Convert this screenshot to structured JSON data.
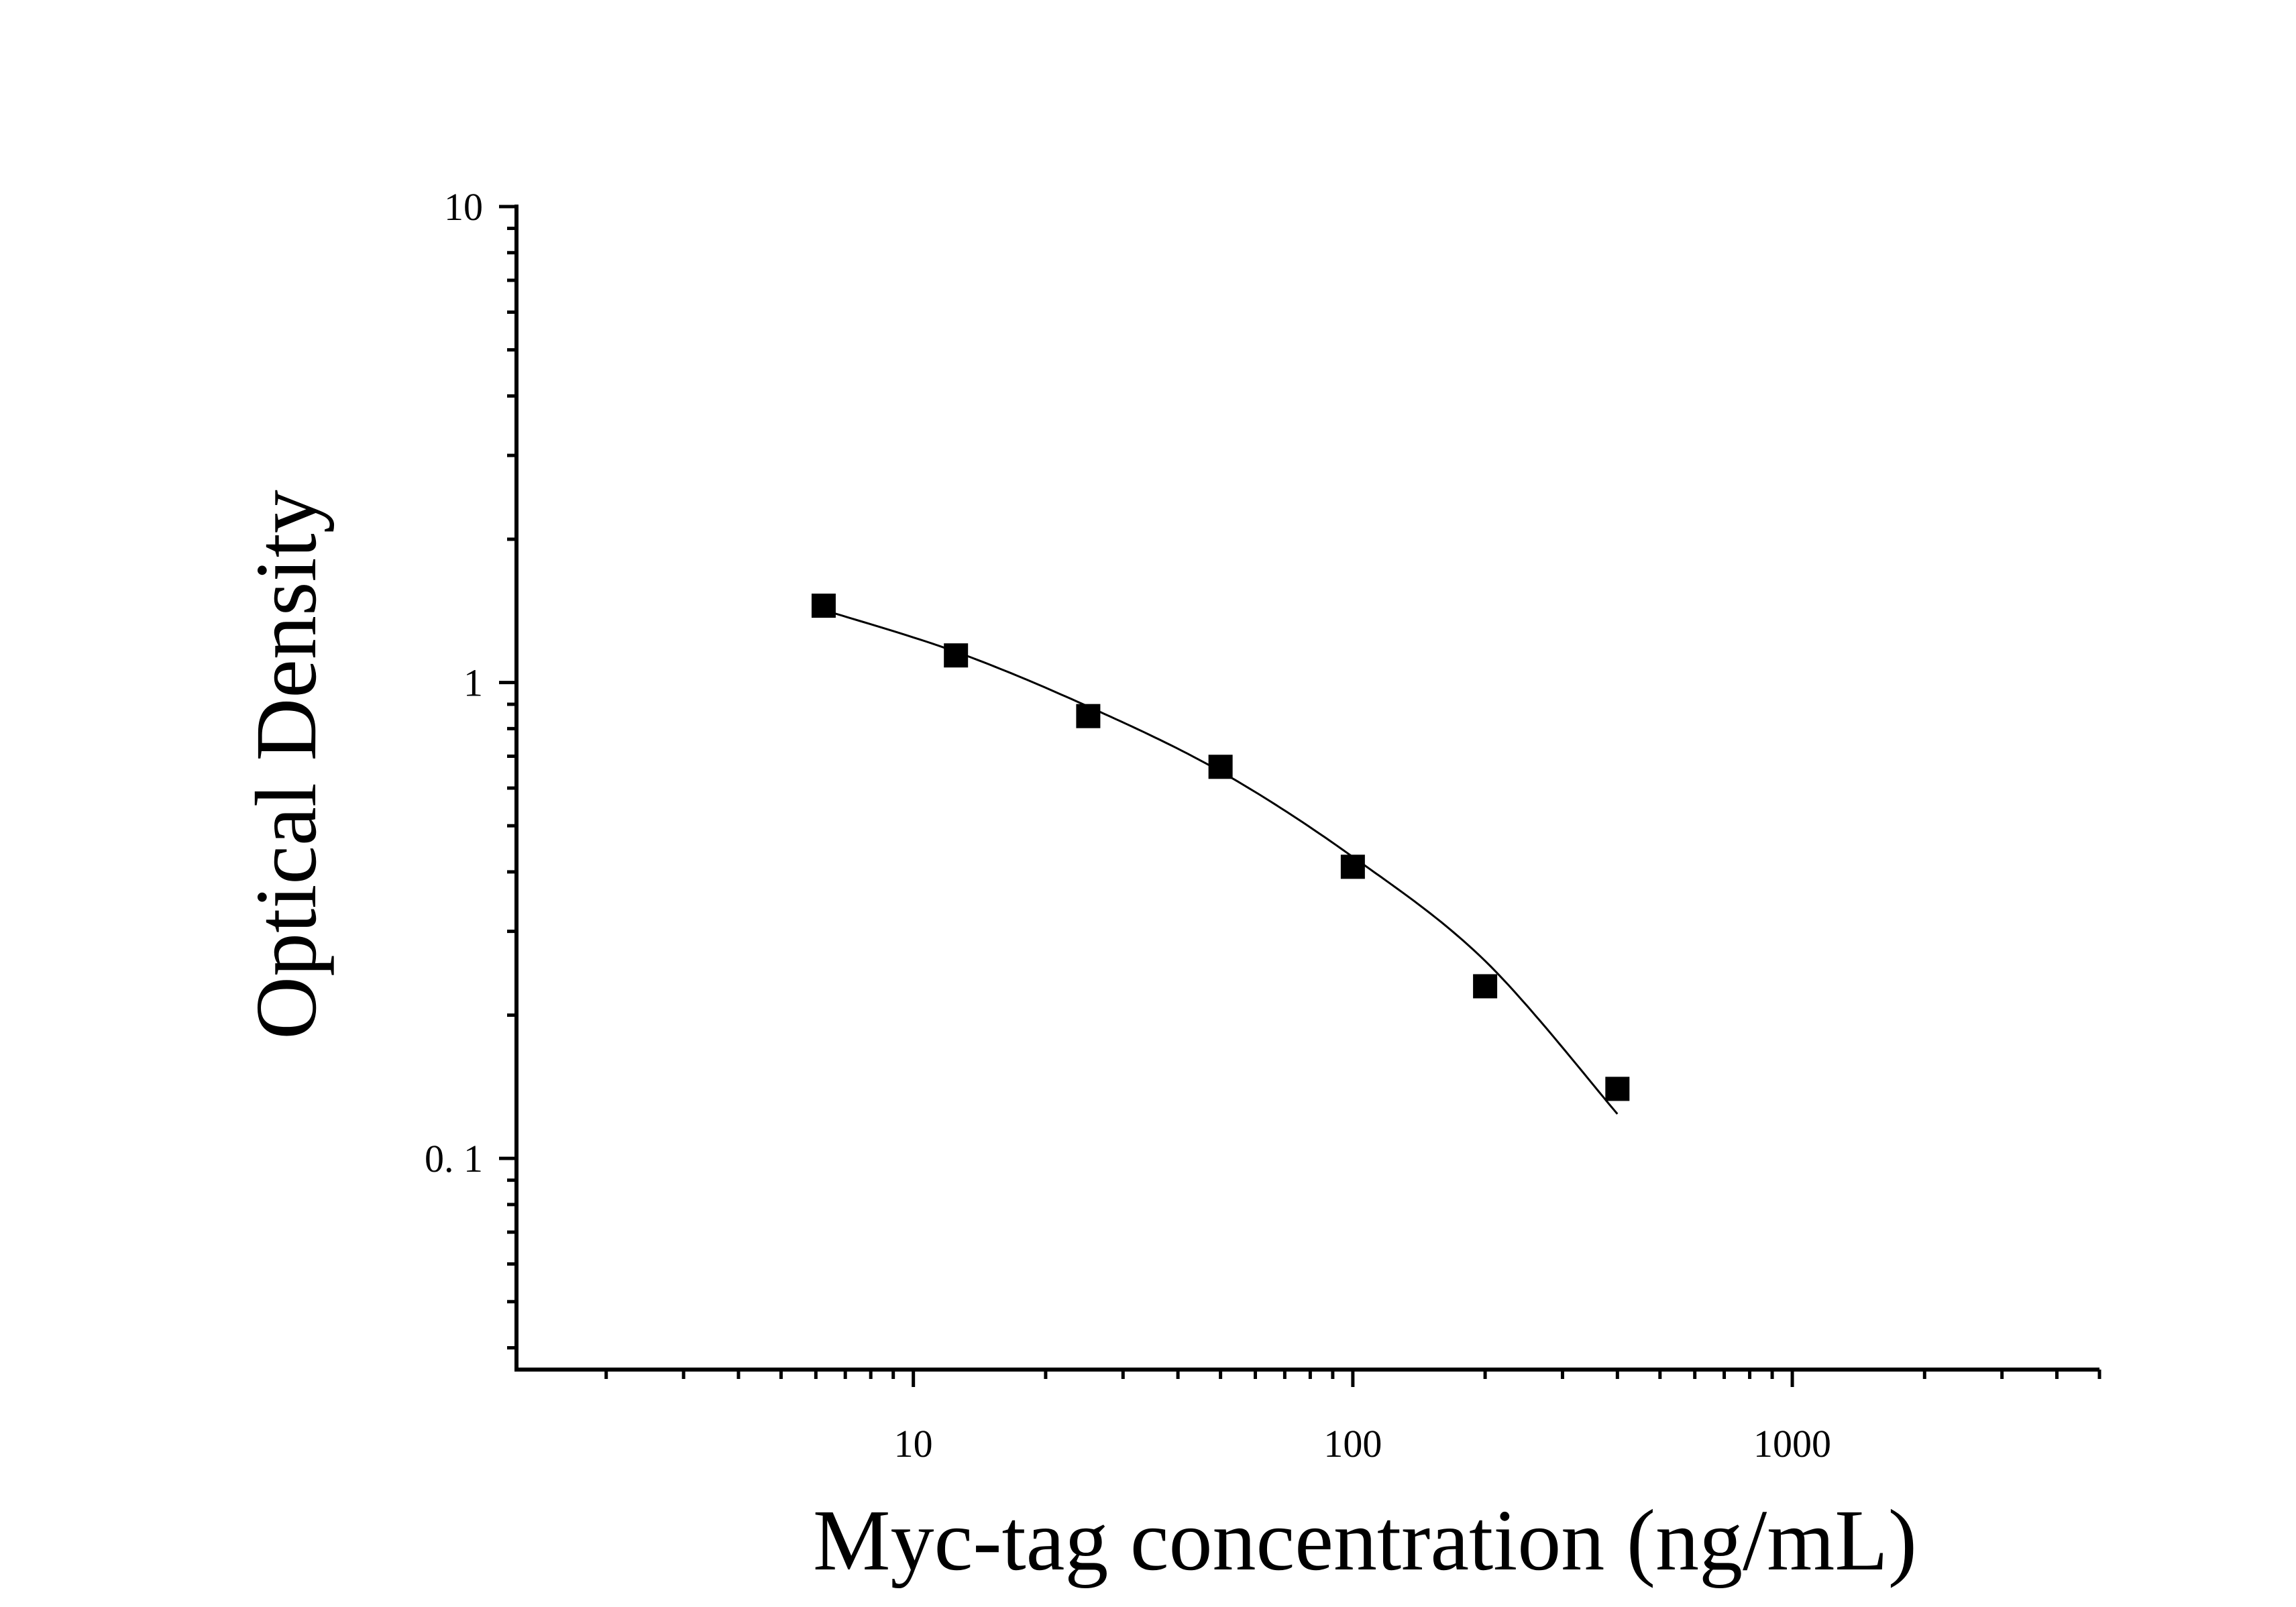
{
  "chart_data": {
    "type": "scatter",
    "title": "",
    "xlabel": "Myc-tag concentration (ng/mL)",
    "ylabel": "Optical Density",
    "x_scale": "log",
    "y_scale": "log",
    "xlim": [
      1.25,
      5000
    ],
    "ylim": [
      0.036,
      10
    ],
    "x_ticks": [
      {
        "value": 10,
        "label": "10"
      },
      {
        "value": 100,
        "label": "100"
      },
      {
        "value": 1000,
        "label": "1000"
      }
    ],
    "y_ticks": [
      {
        "value": 0.1,
        "label": "0. 1"
      },
      {
        "value": 1,
        "label": "1"
      },
      {
        "value": 10,
        "label": "10"
      }
    ],
    "grid": false,
    "legend": "none",
    "colors": {
      "marker": "#000000",
      "curve": "#000000",
      "axis": "#000000"
    },
    "series": [
      {
        "marker": "square",
        "points": [
          {
            "x": 6.25,
            "y": 1.45
          },
          {
            "x": 12.5,
            "y": 1.14
          },
          {
            "x": 25,
            "y": 0.85
          },
          {
            "x": 50,
            "y": 0.665
          },
          {
            "x": 100,
            "y": 0.41
          },
          {
            "x": 200,
            "y": 0.23
          },
          {
            "x": 400,
            "y": 0.14
          }
        ]
      }
    ],
    "fit_curve": {
      "x_range": [
        6.25,
        400
      ],
      "points": [
        {
          "x": 6.25,
          "y": 1.42
        },
        {
          "x": 12.5,
          "y": 1.16
        },
        {
          "x": 25,
          "y": 0.89
        },
        {
          "x": 50,
          "y": 0.65
        },
        {
          "x": 100,
          "y": 0.43
        },
        {
          "x": 200,
          "y": 0.26
        },
        {
          "x": 400,
          "y": 0.124
        }
      ]
    }
  }
}
